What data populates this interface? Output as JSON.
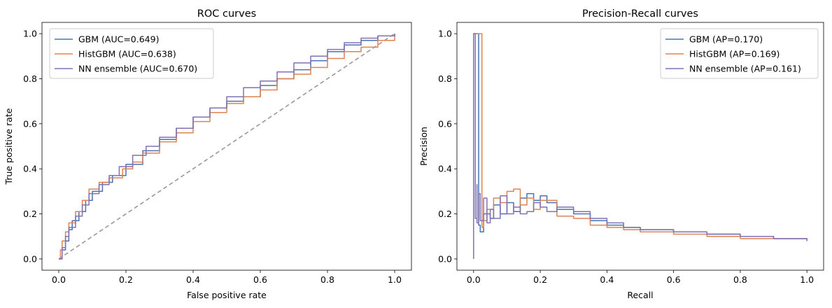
{
  "chart_data": [
    {
      "type": "line",
      "title": "ROC curves",
      "xlabel": "False positive rate",
      "ylabel": "True positive rate",
      "xlim": [
        -0.05,
        1.05
      ],
      "ylim": [
        -0.05,
        1.05
      ],
      "xticks": [
        "0.0",
        "0.2",
        "0.4",
        "0.6",
        "0.8",
        "1.0"
      ],
      "yticks": [
        "0.0",
        "0.2",
        "0.4",
        "0.6",
        "0.8",
        "1.0"
      ],
      "legend_loc": "upper-left",
      "grid": false,
      "diagonal": {
        "x": [
          0,
          1
        ],
        "y": [
          0,
          1
        ],
        "color": "#999999",
        "style": "dashed"
      },
      "series": [
        {
          "name": "GBM (AUC=0.649)",
          "color": "#4c72b0",
          "x": [
            0.0,
            0.01,
            0.02,
            0.03,
            0.04,
            0.06,
            0.08,
            0.1,
            0.13,
            0.16,
            0.2,
            0.25,
            0.3,
            0.35,
            0.4,
            0.45,
            0.5,
            0.55,
            0.6,
            0.65,
            0.7,
            0.75,
            0.8,
            0.85,
            0.9,
            0.95,
            1.0
          ],
          "y": [
            0.0,
            0.04,
            0.08,
            0.13,
            0.17,
            0.21,
            0.26,
            0.3,
            0.34,
            0.37,
            0.42,
            0.48,
            0.53,
            0.58,
            0.63,
            0.67,
            0.7,
            0.72,
            0.77,
            0.8,
            0.84,
            0.88,
            0.92,
            0.95,
            0.97,
            0.99,
            1.0
          ]
        },
        {
          "name": "HistGBM (AUC=0.638)",
          "color": "#dd8452",
          "x": [
            0.0,
            0.005,
            0.01,
            0.02,
            0.03,
            0.05,
            0.07,
            0.09,
            0.12,
            0.15,
            0.19,
            0.22,
            0.25,
            0.3,
            0.35,
            0.4,
            0.45,
            0.5,
            0.55,
            0.6,
            0.65,
            0.7,
            0.75,
            0.8,
            0.85,
            0.9,
            0.95,
            1.0
          ],
          "y": [
            0.0,
            0.04,
            0.08,
            0.12,
            0.16,
            0.21,
            0.26,
            0.31,
            0.34,
            0.36,
            0.4,
            0.43,
            0.47,
            0.52,
            0.56,
            0.61,
            0.65,
            0.69,
            0.72,
            0.75,
            0.8,
            0.82,
            0.85,
            0.89,
            0.92,
            0.94,
            0.97,
            1.0
          ]
        },
        {
          "name": "NN ensemble (AUC=0.670)",
          "color": "#8172b3",
          "x": [
            0.0,
            0.01,
            0.02,
            0.03,
            0.05,
            0.07,
            0.09,
            0.12,
            0.15,
            0.18,
            0.22,
            0.26,
            0.3,
            0.35,
            0.4,
            0.45,
            0.5,
            0.55,
            0.6,
            0.65,
            0.7,
            0.75,
            0.8,
            0.85,
            0.9,
            0.95,
            1.0
          ],
          "y": [
            0.0,
            0.05,
            0.1,
            0.14,
            0.19,
            0.24,
            0.29,
            0.33,
            0.37,
            0.41,
            0.46,
            0.5,
            0.54,
            0.58,
            0.63,
            0.67,
            0.72,
            0.76,
            0.79,
            0.83,
            0.87,
            0.9,
            0.93,
            0.96,
            0.98,
            0.99,
            1.0
          ]
        }
      ]
    },
    {
      "type": "line",
      "title": "Precision-Recall curves",
      "xlabel": "Recall",
      "ylabel": "Precision",
      "xlim": [
        -0.05,
        1.05
      ],
      "ylim": [
        -0.05,
        1.05
      ],
      "xticks": [
        "0.0",
        "0.2",
        "0.4",
        "0.6",
        "0.8",
        "1.0"
      ],
      "yticks": [
        "0.0",
        "0.2",
        "0.4",
        "0.6",
        "0.8",
        "1.0"
      ],
      "legend_loc": "upper-right",
      "grid": false,
      "series": [
        {
          "name": "GBM (AP=0.170)",
          "color": "#4c72b0",
          "x": [
            0.0,
            0.0,
            0.015,
            0.015,
            0.02,
            0.03,
            0.05,
            0.06,
            0.08,
            0.1,
            0.12,
            0.14,
            0.16,
            0.18,
            0.2,
            0.22,
            0.25,
            0.3,
            0.35,
            0.4,
            0.45,
            0.5,
            0.6,
            0.7,
            0.8,
            0.9,
            1.0
          ],
          "y": [
            1.0,
            1.0,
            1.0,
            0.15,
            0.12,
            0.2,
            0.18,
            0.24,
            0.2,
            0.25,
            0.21,
            0.27,
            0.29,
            0.26,
            0.28,
            0.25,
            0.22,
            0.2,
            0.17,
            0.15,
            0.14,
            0.13,
            0.12,
            0.11,
            0.1,
            0.09,
            0.08
          ]
        },
        {
          "name": "HistGBM (AP=0.169)",
          "color": "#dd8452",
          "x": [
            0.0,
            0.0,
            0.02,
            0.025,
            0.025,
            0.03,
            0.04,
            0.06,
            0.08,
            0.1,
            0.12,
            0.14,
            0.16,
            0.18,
            0.2,
            0.25,
            0.3,
            0.35,
            0.4,
            0.45,
            0.5,
            0.6,
            0.7,
            0.8,
            0.9,
            1.0
          ],
          "y": [
            1.0,
            1.0,
            1.0,
            1.0,
            0.14,
            0.17,
            0.22,
            0.27,
            0.25,
            0.3,
            0.31,
            0.24,
            0.27,
            0.22,
            0.26,
            0.19,
            0.18,
            0.15,
            0.14,
            0.13,
            0.12,
            0.11,
            0.1,
            0.09,
            0.09,
            0.08
          ]
        },
        {
          "name": "NN ensemble (AP=0.161)",
          "color": "#8172b3",
          "x": [
            0.0,
            0.0,
            0.005,
            0.01,
            0.01,
            0.015,
            0.02,
            0.03,
            0.04,
            0.05,
            0.06,
            0.08,
            0.1,
            0.12,
            0.14,
            0.16,
            0.18,
            0.2,
            0.22,
            0.25,
            0.3,
            0.35,
            0.4,
            0.45,
            0.5,
            0.6,
            0.7,
            0.8,
            0.9,
            1.0
          ],
          "y": [
            0.0,
            1.0,
            0.18,
            0.33,
            0.16,
            0.29,
            0.17,
            0.27,
            0.16,
            0.22,
            0.18,
            0.28,
            0.2,
            0.23,
            0.2,
            0.21,
            0.25,
            0.23,
            0.21,
            0.23,
            0.21,
            0.18,
            0.16,
            0.14,
            0.13,
            0.12,
            0.11,
            0.1,
            0.09,
            0.08
          ]
        }
      ]
    }
  ]
}
